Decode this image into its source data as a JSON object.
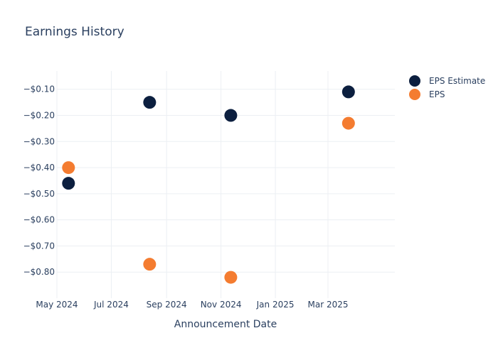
{
  "chart_data": {
    "type": "scatter",
    "title": "Earnings History",
    "xlabel": "Announcement Date",
    "ylabel": "",
    "xlim": [
      "2024-05-01",
      "2025-05-15"
    ],
    "ylim": [
      -0.9,
      -0.03
    ],
    "x_ticks": [
      {
        "date": "2024-05-01",
        "label": "May 2024"
      },
      {
        "date": "2024-07-01",
        "label": "Jul 2024"
      },
      {
        "date": "2024-09-01",
        "label": "Sep 2024"
      },
      {
        "date": "2024-11-01",
        "label": "Nov 2024"
      },
      {
        "date": "2025-01-01",
        "label": "Jan 2025"
      },
      {
        "date": "2025-03-01",
        "label": "Mar 2025"
      }
    ],
    "y_ticks": [
      {
        "value": -0.1,
        "label": "−$0.10"
      },
      {
        "value": -0.2,
        "label": "−$0.20"
      },
      {
        "value": -0.3,
        "label": "−$0.30"
      },
      {
        "value": -0.4,
        "label": "−$0.40"
      },
      {
        "value": -0.5,
        "label": "−$0.50"
      },
      {
        "value": -0.6,
        "label": "−$0.60"
      },
      {
        "value": -0.7,
        "label": "−$0.70"
      },
      {
        "value": -0.8,
        "label": "−$0.80"
      }
    ],
    "grid": true,
    "legend_position": "top-right",
    "series": [
      {
        "name": "EPS Estimate",
        "color": "#0c1f3f",
        "points": [
          {
            "x": "2024-05-14",
            "y": -0.46
          },
          {
            "x": "2024-08-13",
            "y": -0.15
          },
          {
            "x": "2024-11-12",
            "y": -0.2
          },
          {
            "x": "2025-03-24",
            "y": -0.11
          }
        ]
      },
      {
        "name": "EPS",
        "color": "#f47c30",
        "points": [
          {
            "x": "2024-05-14",
            "y": -0.4
          },
          {
            "x": "2024-08-13",
            "y": -0.77
          },
          {
            "x": "2024-11-12",
            "y": -0.82
          },
          {
            "x": "2025-03-24",
            "y": -0.23
          }
        ]
      }
    ]
  }
}
